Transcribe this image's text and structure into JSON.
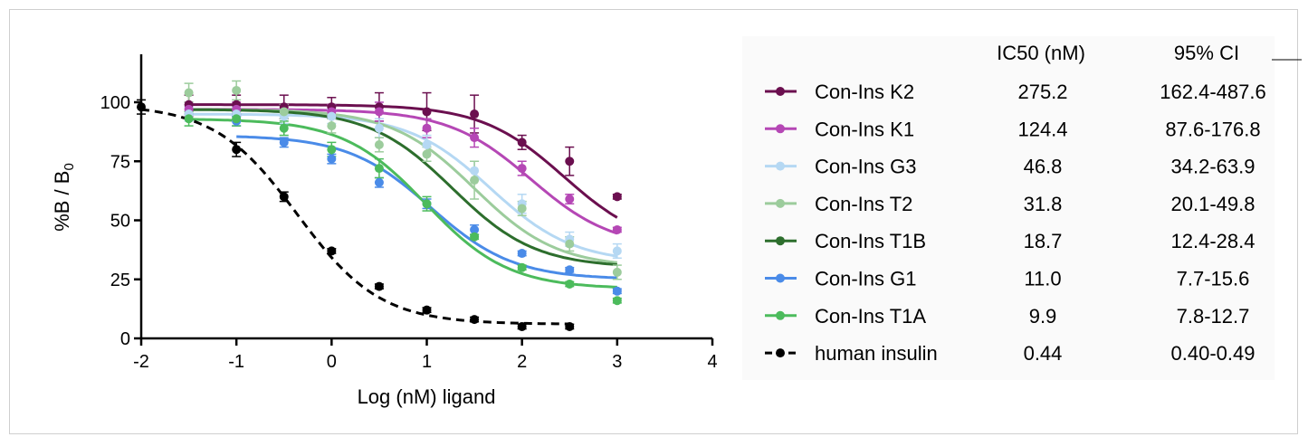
{
  "chart_data": {
    "type": "scatter",
    "xlabel": "Log (nM) ligand",
    "ylabel_main": "%B / B",
    "ylabel_sub": "0",
    "xlim": [
      -2,
      4
    ],
    "ylim": [
      0,
      118
    ],
    "x_ticks": [
      "-2",
      "-1",
      "0",
      "1",
      "2",
      "3",
      "4"
    ],
    "y_ticks": [
      "0",
      "25",
      "50",
      "75",
      "100"
    ],
    "table_headers": [
      "IC50 (nM)",
      "95% CI"
    ],
    "series": [
      {
        "name": "Con-Ins K2",
        "color": "#6b0f4f",
        "dashed": false,
        "ic50": "275.2",
        "ci": "162.4-487.6",
        "fit_top": 99,
        "fit_bottom": 38,
        "fit_logic50": 2.44,
        "fit_xmin": -1.5,
        "fit_xmax": 3,
        "points": [
          [
            -1.5,
            99
          ],
          [
            -1,
            99
          ],
          [
            -0.5,
            98
          ],
          [
            0,
            98
          ],
          [
            0.5,
            98
          ],
          [
            1,
            96
          ],
          [
            1.5,
            95
          ],
          [
            2,
            83
          ],
          [
            2.5,
            75
          ],
          [
            3,
            60
          ]
        ],
        "errors": [
          4,
          4,
          5,
          4,
          6,
          8,
          8,
          3,
          6,
          1
        ]
      },
      {
        "name": "Con-Ins K1",
        "color": "#b547b5",
        "dashed": false,
        "ic50": "124.4",
        "ci": "87.6-176.8",
        "fit_top": 97,
        "fit_bottom": 38,
        "fit_logic50": 2.09,
        "fit_xmin": -1.5,
        "fit_xmax": 3,
        "points": [
          [
            -1.5,
            97
          ],
          [
            -1,
            97
          ],
          [
            -0.5,
            96
          ],
          [
            0,
            96
          ],
          [
            0.5,
            96
          ],
          [
            1,
            89
          ],
          [
            1.5,
            85
          ],
          [
            2,
            72
          ],
          [
            2.5,
            59
          ],
          [
            3,
            46
          ]
        ],
        "errors": [
          3,
          3,
          3,
          3,
          4,
          4,
          4,
          3,
          2,
          1
        ]
      },
      {
        "name": "Con-Ins G3",
        "color": "#b5d8f3",
        "dashed": false,
        "ic50": "46.8",
        "ci": "34.2-63.9",
        "fit_top": 95,
        "fit_bottom": 32,
        "fit_logic50": 1.67,
        "fit_xmin": -1.5,
        "fit_xmax": 3,
        "points": [
          [
            -1.5,
            95
          ],
          [
            -1,
            95
          ],
          [
            -0.5,
            94
          ],
          [
            0,
            94
          ],
          [
            0.5,
            89
          ],
          [
            1,
            82
          ],
          [
            1.5,
            71
          ],
          [
            2,
            57
          ],
          [
            2.5,
            42
          ],
          [
            3,
            37
          ]
        ],
        "errors": [
          3,
          3,
          3,
          3,
          4,
          4,
          4,
          4,
          3,
          3
        ]
      },
      {
        "name": "Con-Ins T2",
        "color": "#9ccc9c",
        "dashed": false,
        "ic50": "31.8",
        "ci": "20.1-49.8",
        "fit_top": 97,
        "fit_bottom": 30,
        "fit_logic50": 1.5,
        "fit_xmin": -1.5,
        "fit_xmax": 3,
        "points": [
          [
            -1.5,
            104
          ],
          [
            -1,
            105
          ],
          [
            -0.5,
            96
          ],
          [
            0,
            90
          ],
          [
            0.5,
            82
          ],
          [
            1,
            78
          ],
          [
            1.5,
            67
          ],
          [
            2,
            55
          ],
          [
            2.5,
            40
          ],
          [
            3,
            28
          ]
        ],
        "errors": [
          4,
          4,
          3,
          3,
          3,
          3,
          8,
          3,
          3,
          3
        ]
      },
      {
        "name": "Con-Ins T1B",
        "color": "#2d6e2d",
        "dashed": false,
        "ic50": "18.7",
        "ci": "12.4-28.4",
        "fit_top": 97,
        "fit_bottom": 30,
        "fit_logic50": 1.27,
        "fit_xmin": -1.5,
        "fit_xmax": 3,
        "points": [],
        "errors": []
      },
      {
        "name": "Con-Ins G1",
        "color": "#4a8be8",
        "dashed": false,
        "ic50": "11.0",
        "ci": "7.7-15.6",
        "fit_top": 86,
        "fit_bottom": 25,
        "fit_logic50": 1.04,
        "fit_xmin": -1,
        "fit_xmax": 3,
        "points": [
          [
            -1,
            92
          ],
          [
            -0.5,
            83
          ],
          [
            0,
            76
          ],
          [
            0.5,
            66
          ],
          [
            1,
            57
          ],
          [
            1.5,
            46
          ],
          [
            2,
            36
          ],
          [
            2.5,
            29
          ],
          [
            3,
            20
          ]
        ],
        "errors": [
          2,
          2,
          2,
          2,
          2,
          2,
          1,
          1,
          1
        ]
      },
      {
        "name": "Con-Ins T1A",
        "color": "#4cbb5c",
        "dashed": false,
        "ic50": "9.9",
        "ci": "7.8-12.7",
        "fit_top": 93,
        "fit_bottom": 21,
        "fit_logic50": 0.99,
        "fit_xmin": -1.5,
        "fit_xmax": 3,
        "points": [
          [
            -1.5,
            93
          ],
          [
            -1,
            93
          ],
          [
            -0.5,
            89
          ],
          [
            0,
            80
          ],
          [
            0.5,
            72
          ],
          [
            1,
            57
          ],
          [
            1.5,
            43
          ],
          [
            2,
            30
          ],
          [
            2.5,
            23
          ],
          [
            3,
            16
          ]
        ],
        "errors": [
          3,
          3,
          3,
          3,
          4,
          3,
          1,
          1,
          1,
          1
        ]
      },
      {
        "name": "human insulin",
        "color": "#000000",
        "dashed": true,
        "ic50": "0.44",
        "ci": "0.40-0.49",
        "fit_top": 99,
        "fit_bottom": 6,
        "fit_logic50": -0.36,
        "fit_xmin": -2,
        "fit_xmax": 2.5,
        "points": [
          [
            -2,
            98
          ],
          [
            -1,
            80
          ],
          [
            -0.5,
            60
          ],
          [
            0,
            37
          ],
          [
            0.5,
            22
          ],
          [
            1,
            12
          ],
          [
            1.5,
            8
          ],
          [
            2,
            5
          ],
          [
            2.5,
            5
          ]
        ],
        "errors": [
          3,
          3,
          2,
          1,
          1,
          1,
          1,
          1,
          1
        ]
      }
    ]
  }
}
